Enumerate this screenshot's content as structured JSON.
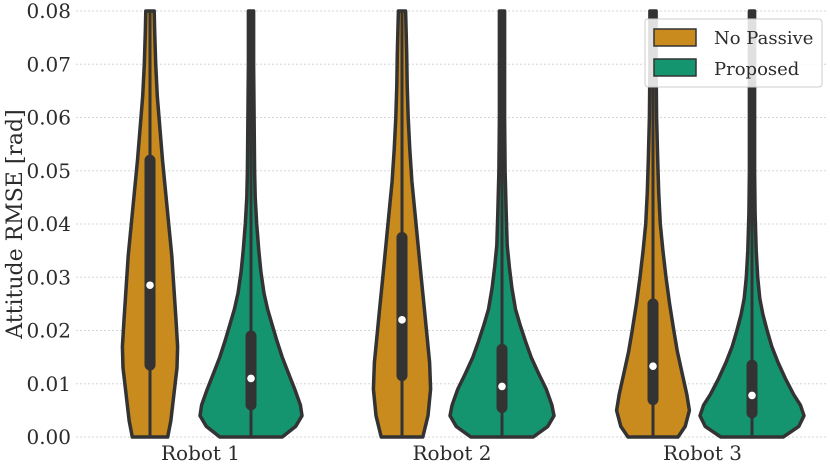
{
  "chart_data": {
    "type": "violin",
    "ylabel": "Attitude RMSE [rad]",
    "ylim": [
      0,
      0.08
    ],
    "yticks": [
      "0.00",
      "0.01",
      "0.02",
      "0.03",
      "0.04",
      "0.05",
      "0.06",
      "0.07",
      "0.08"
    ],
    "categories": [
      "Robot 1",
      "Robot 2",
      "Robot 3"
    ],
    "grid": true,
    "legend": {
      "placement": "top-right"
    },
    "series": [
      {
        "name": "No Passive",
        "color": "#c98a1e",
        "stats": [
          {
            "median": 0.0285,
            "q1": 0.0125,
            "q3": 0.053,
            "max": 0.08,
            "profile": [
              [
                0.0,
                0.34
              ],
              [
                0.003,
                0.4
              ],
              [
                0.008,
                0.46
              ],
              [
                0.013,
                0.52
              ],
              [
                0.017,
                0.53
              ],
              [
                0.022,
                0.5
              ],
              [
                0.028,
                0.46
              ],
              [
                0.034,
                0.42
              ],
              [
                0.04,
                0.36
              ],
              [
                0.046,
                0.3
              ],
              [
                0.052,
                0.24
              ],
              [
                0.058,
                0.19
              ],
              [
                0.064,
                0.14
              ],
              [
                0.07,
                0.11
              ],
              [
                0.076,
                0.09
              ],
              [
                0.08,
                0.08
              ]
            ]
          },
          {
            "median": 0.022,
            "q1": 0.0105,
            "q3": 0.0385,
            "max": 0.08,
            "profile": [
              [
                0.0,
                0.4
              ],
              [
                0.004,
                0.5
              ],
              [
                0.009,
                0.55
              ],
              [
                0.014,
                0.53
              ],
              [
                0.019,
                0.48
              ],
              [
                0.024,
                0.43
              ],
              [
                0.03,
                0.37
              ],
              [
                0.036,
                0.31
              ],
              [
                0.042,
                0.25
              ],
              [
                0.048,
                0.19
              ],
              [
                0.054,
                0.15
              ],
              [
                0.06,
                0.12
              ],
              [
                0.066,
                0.1
              ],
              [
                0.072,
                0.09
              ],
              [
                0.08,
                0.07
              ]
            ]
          },
          {
            "median": 0.0133,
            "q1": 0.006,
            "q3": 0.026,
            "max": 0.08,
            "profile": [
              [
                0.0,
                0.48
              ],
              [
                0.002,
                0.62
              ],
              [
                0.005,
                0.7
              ],
              [
                0.008,
                0.65
              ],
              [
                0.012,
                0.56
              ],
              [
                0.016,
                0.47
              ],
              [
                0.02,
                0.4
              ],
              [
                0.025,
                0.32
              ],
              [
                0.03,
                0.25
              ],
              [
                0.035,
                0.19
              ],
              [
                0.04,
                0.14
              ],
              [
                0.046,
                0.11
              ],
              [
                0.052,
                0.09
              ],
              [
                0.06,
                0.07
              ],
              [
                0.07,
                0.06
              ],
              [
                0.08,
                0.06
              ]
            ]
          }
        ]
      },
      {
        "name": "Proposed",
        "color": "#159470",
        "stats": [
          {
            "median": 0.011,
            "q1": 0.005,
            "q3": 0.02,
            "max": 0.08,
            "profile": [
              [
                0.0,
                0.6
              ],
              [
                0.002,
                0.86
              ],
              [
                0.004,
                0.98
              ],
              [
                0.006,
                0.95
              ],
              [
                0.009,
                0.84
              ],
              [
                0.012,
                0.72
              ],
              [
                0.015,
                0.6
              ],
              [
                0.018,
                0.5
              ],
              [
                0.021,
                0.41
              ],
              [
                0.024,
                0.32
              ],
              [
                0.027,
                0.25
              ],
              [
                0.031,
                0.19
              ],
              [
                0.035,
                0.15
              ],
              [
                0.04,
                0.11
              ],
              [
                0.045,
                0.08
              ],
              [
                0.05,
                0.07
              ],
              [
                0.06,
                0.06
              ],
              [
                0.07,
                0.05
              ],
              [
                0.08,
                0.05
              ]
            ]
          },
          {
            "median": 0.0095,
            "q1": 0.0045,
            "q3": 0.0175,
            "max": 0.08,
            "profile": [
              [
                0.0,
                0.6
              ],
              [
                0.002,
                0.88
              ],
              [
                0.004,
                1.0
              ],
              [
                0.006,
                0.96
              ],
              [
                0.009,
                0.85
              ],
              [
                0.012,
                0.7
              ],
              [
                0.015,
                0.56
              ],
              [
                0.018,
                0.45
              ],
              [
                0.021,
                0.35
              ],
              [
                0.024,
                0.26
              ],
              [
                0.028,
                0.19
              ],
              [
                0.032,
                0.14
              ],
              [
                0.036,
                0.1
              ],
              [
                0.042,
                0.08
              ],
              [
                0.05,
                0.06
              ],
              [
                0.06,
                0.05
              ],
              [
                0.08,
                0.05
              ]
            ]
          },
          {
            "median": 0.0078,
            "q1": 0.0035,
            "q3": 0.0145,
            "max": 0.08,
            "profile": [
              [
                0.0,
                0.6
              ],
              [
                0.002,
                0.9
              ],
              [
                0.004,
                1.0
              ],
              [
                0.006,
                0.93
              ],
              [
                0.008,
                0.8
              ],
              [
                0.011,
                0.64
              ],
              [
                0.014,
                0.5
              ],
              [
                0.017,
                0.38
              ],
              [
                0.02,
                0.29
              ],
              [
                0.023,
                0.21
              ],
              [
                0.026,
                0.15
              ],
              [
                0.03,
                0.11
              ],
              [
                0.035,
                0.08
              ],
              [
                0.042,
                0.06
              ],
              [
                0.05,
                0.05
              ],
              [
                0.08,
                0.05
              ]
            ]
          }
        ]
      }
    ]
  }
}
